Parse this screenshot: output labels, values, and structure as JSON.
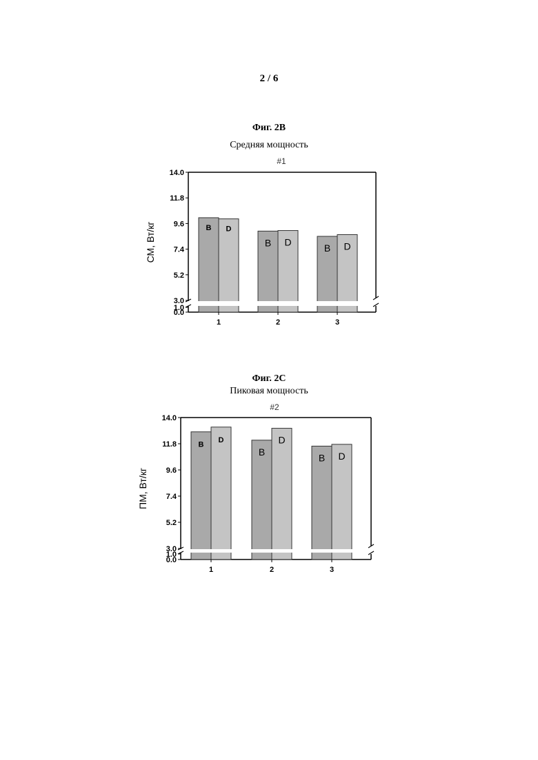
{
  "page": {
    "number": "2 / 6"
  },
  "figures": [
    {
      "title": "Фиг. 2B",
      "subtitle": "Средняя мощность",
      "panel_label": "#1",
      "ylabel": "СМ, Вт/кг"
    },
    {
      "title": "Фиг. 2C",
      "subtitle": "Пиковая мощность",
      "panel_label": "#2",
      "ylabel": "ПМ, Вт/кг"
    }
  ],
  "chart_data": [
    {
      "type": "bar",
      "title": "Фиг. 2B",
      "subtitle": "Средняя мощность",
      "panel_label": "#1",
      "xlabel": "",
      "ylabel": "СМ, Вт/кг",
      "categories": [
        "1",
        "2",
        "3"
      ],
      "yticks": [
        "0.0",
        "1.0",
        "3.0",
        "5.2",
        "7.4",
        "9.6",
        "11.8",
        "14.0"
      ],
      "axis_break": true,
      "ylim": [
        0,
        14.0
      ],
      "series": [
        {
          "name": "B",
          "values": [
            10.1,
            8.95,
            8.5
          ],
          "color": "#a9a9a9"
        },
        {
          "name": "D",
          "values": [
            10.0,
            9.0,
            8.65
          ],
          "color": "#c4c4c4"
        }
      ],
      "bar_labels": [
        "B",
        "D"
      ],
      "grid": false
    },
    {
      "type": "bar",
      "title": "Фиг. 2C",
      "subtitle": "Пиковая мощность",
      "panel_label": "#2",
      "xlabel": "",
      "ylabel": "ПМ, Вт/кг",
      "categories": [
        "1",
        "2",
        "3"
      ],
      "yticks": [
        "0.0",
        "1.0",
        "3.0",
        "5.2",
        "7.4",
        "9.6",
        "11.8",
        "14.0"
      ],
      "axis_break": true,
      "ylim": [
        0,
        14.0
      ],
      "series": [
        {
          "name": "B",
          "values": [
            12.8,
            12.1,
            11.6
          ],
          "color": "#a9a9a9"
        },
        {
          "name": "D",
          "values": [
            13.2,
            13.1,
            11.75
          ],
          "color": "#c4c4c4"
        }
      ],
      "bar_labels": [
        "B",
        "D"
      ],
      "grid": false
    }
  ]
}
